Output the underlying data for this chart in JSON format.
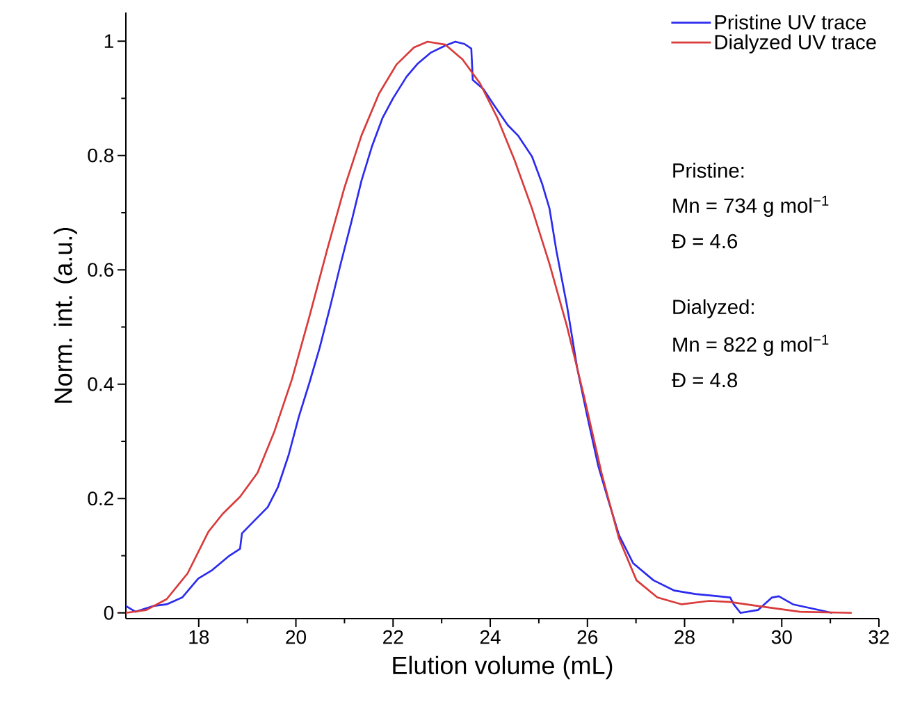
{
  "chart_data": {
    "type": "line",
    "xlabel": "Elution volume (mL)",
    "ylabel": "Norm. int. (a.u.)",
    "xlim": [
      16.5,
      32
    ],
    "ylim": [
      -0.01,
      1.05
    ],
    "xticks": [
      18,
      20,
      22,
      24,
      26,
      28,
      30,
      32
    ],
    "yticks": [
      0,
      0.2,
      0.4,
      0.6,
      0.8,
      1
    ],
    "legend": "top right",
    "grid": false,
    "marker": "none",
    "line_style": "solid",
    "series": [
      {
        "name": "Pristine UV trace",
        "color": "#2b2bef",
        "x": [
          16.5,
          16.7,
          17.06,
          17.34,
          17.66,
          17.99,
          18.28,
          18.63,
          18.85,
          18.89,
          19.06,
          19.42,
          19.63,
          19.85,
          20.06,
          20.28,
          20.49,
          20.71,
          20.92,
          21.14,
          21.35,
          21.57,
          21.78,
          22.0,
          22.28,
          22.5,
          22.78,
          23.07,
          23.28,
          23.47,
          23.61,
          23.64,
          23.86,
          24.07,
          24.36,
          24.57,
          24.86,
          25.07,
          25.22,
          25.36,
          25.58,
          25.79,
          26.0,
          26.22,
          26.43,
          26.65,
          26.94,
          27.36,
          27.79,
          28.22,
          28.94,
          29.01,
          29.15,
          29.51,
          29.8,
          29.94,
          30.23,
          30.66,
          31.04
        ],
        "values": [
          0.012,
          0.002,
          0.012,
          0.015,
          0.027,
          0.06,
          0.075,
          0.1,
          0.112,
          0.139,
          0.154,
          0.185,
          0.22,
          0.276,
          0.343,
          0.403,
          0.464,
          0.537,
          0.61,
          0.683,
          0.756,
          0.817,
          0.865,
          0.9,
          0.938,
          0.96,
          0.98,
          0.992,
          0.999,
          0.995,
          0.987,
          0.932,
          0.916,
          0.889,
          0.853,
          0.835,
          0.798,
          0.75,
          0.707,
          0.634,
          0.537,
          0.428,
          0.343,
          0.258,
          0.197,
          0.136,
          0.087,
          0.057,
          0.039,
          0.033,
          0.027,
          0.015,
          0.0,
          0.005,
          0.027,
          0.029,
          0.015,
          0.007,
          0.0
        ]
      },
      {
        "name": "Dialyzed UV trace",
        "color": "#d93a3a",
        "x": [
          16.5,
          16.92,
          17.34,
          17.77,
          18.2,
          18.49,
          18.85,
          19.21,
          19.56,
          19.92,
          20.28,
          20.64,
          21.0,
          21.35,
          21.71,
          22.07,
          22.43,
          22.71,
          23.07,
          23.43,
          23.79,
          24.15,
          24.5,
          24.86,
          25.22,
          25.58,
          25.93,
          26.29,
          26.65,
          27.01,
          27.44,
          27.94,
          28.51,
          28.94,
          29.51,
          30.37,
          31.44
        ],
        "values": [
          0,
          0.005,
          0.024,
          0.069,
          0.142,
          0.173,
          0.203,
          0.245,
          0.318,
          0.409,
          0.519,
          0.634,
          0.744,
          0.835,
          0.908,
          0.959,
          0.989,
          0.999,
          0.994,
          0.968,
          0.926,
          0.865,
          0.792,
          0.707,
          0.61,
          0.501,
          0.379,
          0.245,
          0.13,
          0.057,
          0.027,
          0.015,
          0.021,
          0.019,
          0.012,
          0.002,
          0
        ]
      }
    ],
    "annotations": [
      "Pristine:",
      "Mn = 734 g mol$^{−1}$",
      "Đ = 4.6",
      "Dialyzed:",
      "Mn = 822 g mol$^{−1}$",
      "Đ = 4.8"
    ]
  }
}
